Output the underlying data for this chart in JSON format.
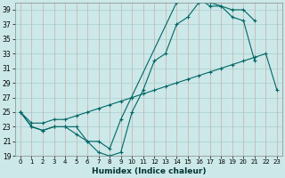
{
  "title": "",
  "xlabel": "Humidex (Indice chaleur)",
  "bg_color": "#cce8e8",
  "line_color": "#006666",
  "xlim": [
    -0.5,
    23.5
  ],
  "ylim": [
    19,
    40
  ],
  "yticks": [
    19,
    21,
    23,
    25,
    27,
    29,
    31,
    33,
    35,
    37,
    39
  ],
  "xticks": [
    0,
    1,
    2,
    3,
    4,
    5,
    6,
    7,
    8,
    9,
    10,
    11,
    12,
    13,
    14,
    15,
    16,
    17,
    18,
    19,
    20,
    21,
    22,
    23
  ],
  "line1_x": [
    0,
    1,
    2,
    3,
    4,
    5,
    6,
    7,
    8,
    9,
    10,
    11,
    12,
    13,
    14,
    15,
    16,
    17,
    18,
    19,
    20,
    21
  ],
  "line1_y": [
    25,
    23,
    22.5,
    23,
    23,
    23,
    21,
    19.5,
    19,
    19.5,
    25,
    28,
    32,
    33,
    37,
    38,
    40,
    40,
    39.5,
    38,
    37.5,
    32
  ],
  "line2_x": [
    0,
    1,
    2,
    3,
    4,
    5,
    6,
    7,
    8,
    9,
    14,
    15,
    16,
    17,
    18,
    19,
    20,
    21
  ],
  "line2_y": [
    25,
    23,
    22.5,
    23,
    23,
    22,
    21,
    21,
    20,
    24,
    40,
    40.5,
    40.5,
    39.5,
    39.5,
    39,
    39,
    37.5
  ],
  "line3_x": [
    0,
    1,
    2,
    3,
    4,
    5,
    6,
    7,
    8,
    9,
    10,
    11,
    12,
    13,
    14,
    15,
    16,
    17,
    18,
    19,
    20,
    21,
    22,
    23
  ],
  "line3_y": [
    25,
    23.5,
    23.5,
    24,
    24,
    24.5,
    25,
    25.5,
    26,
    26.5,
    27,
    27.5,
    28,
    28.5,
    29,
    29.5,
    30,
    30.5,
    31,
    31.5,
    32,
    32.5,
    33,
    28
  ]
}
